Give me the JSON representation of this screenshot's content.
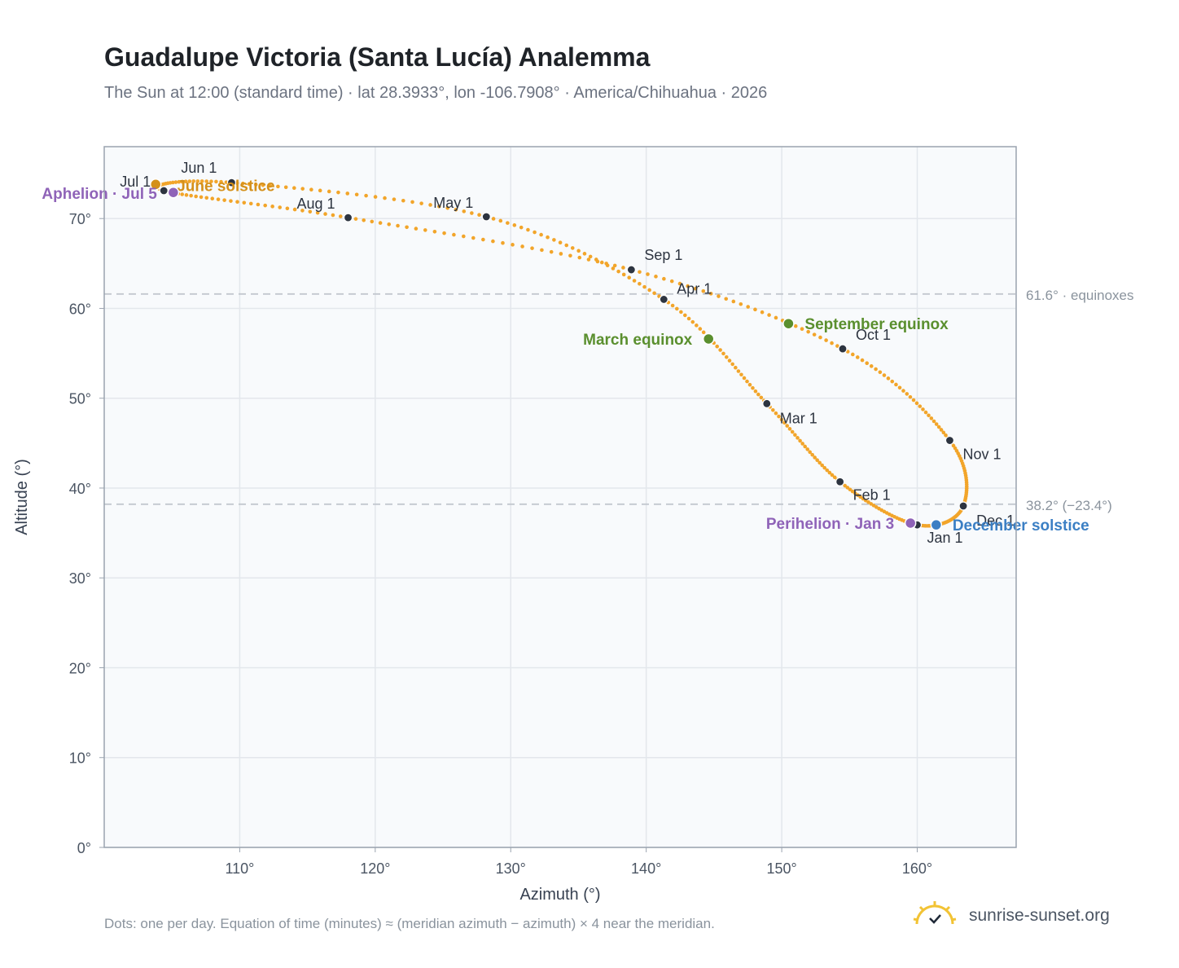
{
  "header": {
    "title": "Guadalupe Victoria (Santa Lucía) Analemma",
    "subtitle": "The Sun at 12:00 (standard time) · lat 28.3933°, lon -106.7908° · America/Chihuahua · 2026"
  },
  "footer": {
    "note": "Dots: one per day. Equation of time (minutes) ≈ (meridian azimuth − azimuth) × 4 near the meridian.",
    "brand": "sunrise-sunset.org"
  },
  "colors": {
    "curve": "#f2a52a",
    "month_marker": "#2d3440",
    "equinox": "#5a8f2e",
    "june_solstice": "#d4901a",
    "december_solstice": "#3b7fc4",
    "apsis": "#8f63b8",
    "reference_line": "#c3c8cf",
    "plot_background": "#f8fafc"
  },
  "chart_data": {
    "type": "scatter",
    "xlabel": "Azimuth (°)",
    "ylabel": "Altitude (°)",
    "xlim": [
      100,
      167.3
    ],
    "ylim": [
      0,
      78
    ],
    "x_ticks": [
      110,
      120,
      130,
      140,
      150,
      160
    ],
    "y_ticks": [
      0,
      10,
      20,
      30,
      40,
      50,
      60,
      70
    ],
    "x_tick_labels": [
      "110°",
      "120°",
      "130°",
      "140°",
      "150°",
      "160°"
    ],
    "y_tick_labels": [
      "0°",
      "10°",
      "20°",
      "30°",
      "40°",
      "50°",
      "60°",
      "70°"
    ],
    "grid": true,
    "reference_lines": [
      {
        "y": 61.6,
        "label": "61.6° · equinoxes"
      },
      {
        "y": 38.2,
        "label": "38.2° (−23.4°)"
      }
    ],
    "month_points": [
      {
        "label": "Jan 1",
        "azimuth": 160.0,
        "altitude": 35.9
      },
      {
        "label": "Feb 1",
        "azimuth": 154.3,
        "altitude": 40.7
      },
      {
        "label": "Mar 1",
        "azimuth": 148.9,
        "altitude": 49.4
      },
      {
        "label": "Apr 1",
        "azimuth": 141.3,
        "altitude": 61.0
      },
      {
        "label": "May 1",
        "azimuth": 128.2,
        "altitude": 70.2
      },
      {
        "label": "Jun 1",
        "azimuth": 109.4,
        "altitude": 74.0
      },
      {
        "label": "Jul 1",
        "azimuth": 104.4,
        "altitude": 73.1
      },
      {
        "label": "Aug 1",
        "azimuth": 118.0,
        "altitude": 70.1
      },
      {
        "label": "Sep 1",
        "azimuth": 138.9,
        "altitude": 64.3
      },
      {
        "label": "Oct 1",
        "azimuth": 154.5,
        "altitude": 55.5
      },
      {
        "label": "Nov 1",
        "azimuth": 162.4,
        "altitude": 45.3
      },
      {
        "label": "Dec 1",
        "azimuth": 163.4,
        "altitude": 38.0
      }
    ],
    "special_points": [
      {
        "label": "March equinox",
        "azimuth": 144.6,
        "altitude": 56.6,
        "kind": "equinox"
      },
      {
        "label": "September equinox",
        "azimuth": 150.5,
        "altitude": 58.3,
        "kind": "equinox"
      },
      {
        "label": "June solstice",
        "azimuth": 103.8,
        "altitude": 73.8,
        "kind": "june_solstice"
      },
      {
        "label": "December solstice",
        "azimuth": 161.4,
        "altitude": 35.9,
        "kind": "december_solstice"
      },
      {
        "label": "Perihelion · Jan 3",
        "azimuth": 159.5,
        "altitude": 36.1,
        "kind": "apsis"
      },
      {
        "label": "Aphelion · Jul 5",
        "azimuth": 105.1,
        "altitude": 72.9,
        "kind": "apsis"
      }
    ]
  }
}
